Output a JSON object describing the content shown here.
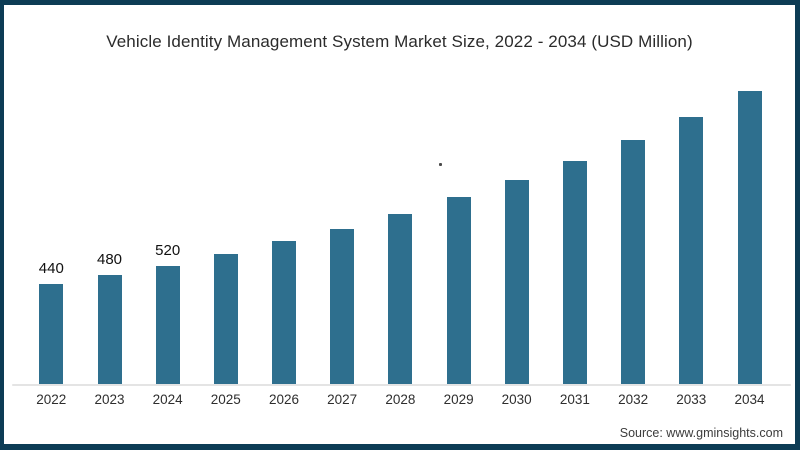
{
  "frame": {
    "border_color": "#0d3c55",
    "background_color": "#ffffff"
  },
  "chart_data": {
    "type": "bar",
    "title": "Vehicle Identity Management System Market Size, 2022 - 2034 (USD Million)",
    "xlabel": "",
    "ylabel": "",
    "categories": [
      "2022",
      "2023",
      "2024",
      "2025",
      "2026",
      "2027",
      "2028",
      "2029",
      "2030",
      "2031",
      "2032",
      "2033",
      "2034"
    ],
    "values": [
      440,
      480,
      520,
      575,
      630,
      685,
      750,
      825,
      900,
      985,
      1075,
      1175,
      1290
    ],
    "data_labels": [
      "440",
      "480",
      "520",
      null,
      null,
      null,
      null,
      null,
      null,
      null,
      null,
      null,
      null
    ],
    "values_note": "Only the 2022-2024 bars carry printed labels (440, 480, 520); later values are estimated from bar heights.",
    "bar_color": "#2e6f8e",
    "axis_line_color": "#e4e4e4",
    "ylim": [
      0,
      1300
    ],
    "grid": false,
    "legend": "none"
  },
  "annotations": [
    {
      "text": ".",
      "description": "tiny stray dot above the 2029 bar"
    }
  ],
  "source": {
    "label": "Source: www.gminsights.com"
  }
}
